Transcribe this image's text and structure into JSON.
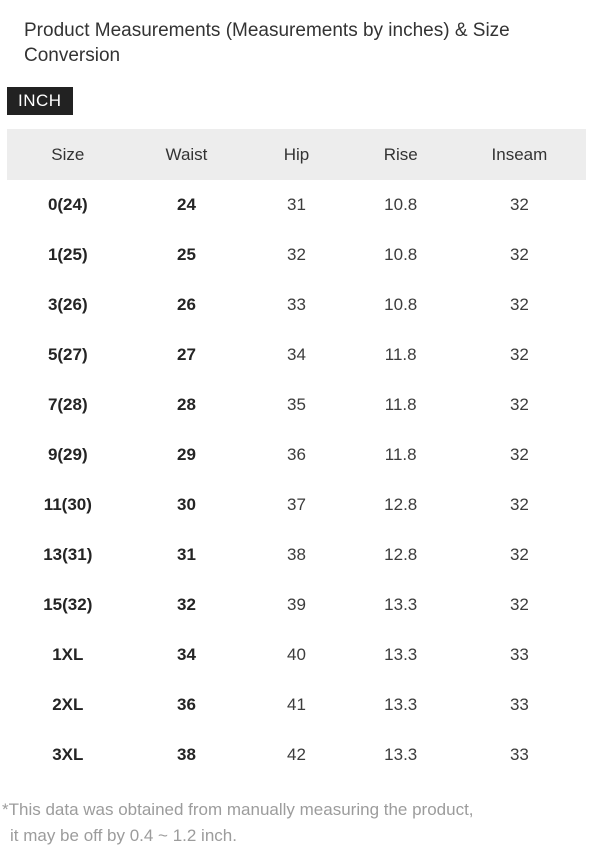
{
  "page": {
    "title": "Product Measurements (Measurements by inches) & Size Conversion",
    "unit_badge": "INCH",
    "footnote_line1": "*This data was obtained from manually measuring the product,",
    "footnote_line2": "it may be off by 0.4 ~ 1.2 inch."
  },
  "table": {
    "columns": [
      "Size",
      "Waist",
      "Hip",
      "Rise",
      "Inseam"
    ],
    "rows": [
      [
        "0(24)",
        "24",
        "31",
        "10.8",
        "32"
      ],
      [
        "1(25)",
        "25",
        "32",
        "10.8",
        "32"
      ],
      [
        "3(26)",
        "26",
        "33",
        "10.8",
        "32"
      ],
      [
        "5(27)",
        "27",
        "34",
        "11.8",
        "32"
      ],
      [
        "7(28)",
        "28",
        "35",
        "11.8",
        "32"
      ],
      [
        "9(29)",
        "29",
        "36",
        "11.8",
        "32"
      ],
      [
        "11(30)",
        "30",
        "37",
        "12.8",
        "32"
      ],
      [
        "13(31)",
        "31",
        "38",
        "12.8",
        "32"
      ],
      [
        "15(32)",
        "32",
        "39",
        "13.3",
        "32"
      ],
      [
        "1XL",
        "34",
        "40",
        "13.3",
        "33"
      ],
      [
        "2XL",
        "36",
        "41",
        "13.3",
        "33"
      ],
      [
        "3XL",
        "38",
        "42",
        "13.3",
        "33"
      ]
    ]
  },
  "colors": {
    "badge_bg": "#222222",
    "badge_text": "#ffffff",
    "header_bg": "#ededed",
    "title_text": "#333333",
    "cell_text": "#3c3c3c",
    "bold_cell_text": "#242424",
    "footnote_text": "#9c9c9c"
  }
}
